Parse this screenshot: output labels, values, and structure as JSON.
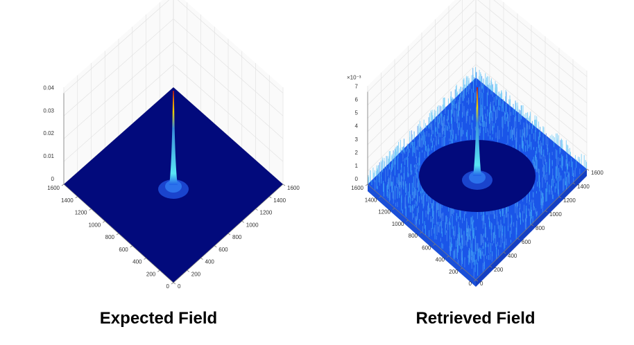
{
  "colors": {
    "floor": "#020a7c",
    "noise_light": "#3ea6f5",
    "noise_mid": "#1a55e8",
    "peak_cyan": "#58e6f4",
    "peak_yellow": "#f0d000",
    "peak_red": "#c01010"
  },
  "chart_data": [
    {
      "type": "surface",
      "caption": "Expected Field",
      "z_ticks": [
        "0",
        "0.01",
        "0.02",
        "0.03",
        "0.04"
      ],
      "zlim": [
        0,
        0.04
      ],
      "x_ticks": [
        "0",
        "200",
        "400",
        "600",
        "800",
        "1000",
        "1200",
        "1400",
        "1600"
      ],
      "y_ticks": [
        "0",
        "200",
        "400",
        "600",
        "800",
        "1000",
        "1200",
        "1400",
        "1600"
      ],
      "xlim": [
        0,
        1600
      ],
      "ylim": [
        0,
        1600
      ],
      "z_exponent": "",
      "noise_ring": false
    },
    {
      "type": "surface",
      "caption": "Retrieved Field",
      "z_ticks": [
        "0",
        "1",
        "2",
        "3",
        "4",
        "5",
        "6",
        "7"
      ],
      "zlim": [
        0,
        7
      ],
      "z_exponent": "×10⁻³",
      "x_ticks": [
        "0",
        "200",
        "400",
        "600",
        "800",
        "1000",
        "1200",
        "1400",
        "1600"
      ],
      "y_ticks": [
        "0",
        "200",
        "400",
        "600",
        "800",
        "1000",
        "1200",
        "1400",
        "1600"
      ],
      "xlim": [
        0,
        1600
      ],
      "ylim": [
        0,
        1600
      ],
      "noise_ring": true
    }
  ]
}
